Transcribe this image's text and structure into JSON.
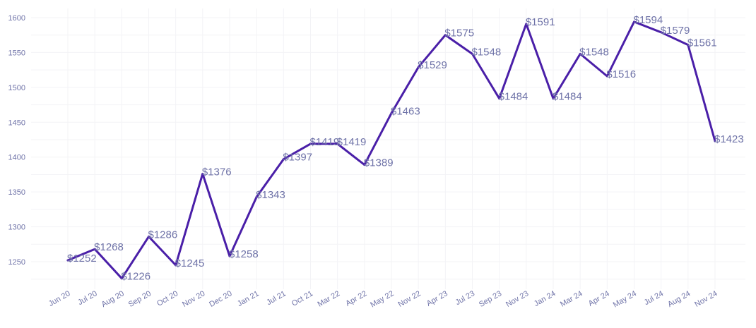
{
  "chart_data": {
    "type": "line",
    "title": "",
    "xlabel": "",
    "ylabel": "",
    "categories": [
      "Jun 20",
      "Jul 20",
      "Aug 20",
      "Sep 20",
      "Oct 20",
      "Nov 20",
      "Dec 20",
      "Jan 21",
      "Jul 21",
      "Oct 21",
      "Mar 22",
      "Apr 22",
      "May 22",
      "Nov 22",
      "Apr 23",
      "Jul 23",
      "Sep 23",
      "Nov 23",
      "Jan 24",
      "Mar 24",
      "Apr 24",
      "May 24",
      "Jul 24",
      "Aug 24",
      "Nov 24"
    ],
    "values": [
      1252,
      1268,
      1226,
      1286,
      1245,
      1376,
      1258,
      1343,
      1397,
      1419,
      1419,
      1389,
      1463,
      1529,
      1575,
      1548,
      1484,
      1591,
      1484,
      1548,
      1516,
      1594,
      1579,
      1561,
      1423
    ],
    "data_labels": [
      "$1252",
      "$1268",
      "$1226",
      "$1286",
      "$1245",
      "$1376",
      "$1258",
      "$1343",
      "$1397",
      "$1419",
      "$1419",
      "$1389",
      "$1463",
      "$1529",
      "$1575",
      "$1548",
      "$1484",
      "$1591",
      "$1484",
      "$1548",
      "$1516",
      "$1594",
      "$1579",
      "$1561",
      "$1423"
    ],
    "yticks": [
      1250,
      1300,
      1350,
      1400,
      1450,
      1500,
      1550,
      1600
    ],
    "ylim": [
      1205,
      1615
    ],
    "grid": true,
    "line_color": "#4a1fa8",
    "label_color": "#6f73a8",
    "grid_color": "#f3f3f6"
  }
}
